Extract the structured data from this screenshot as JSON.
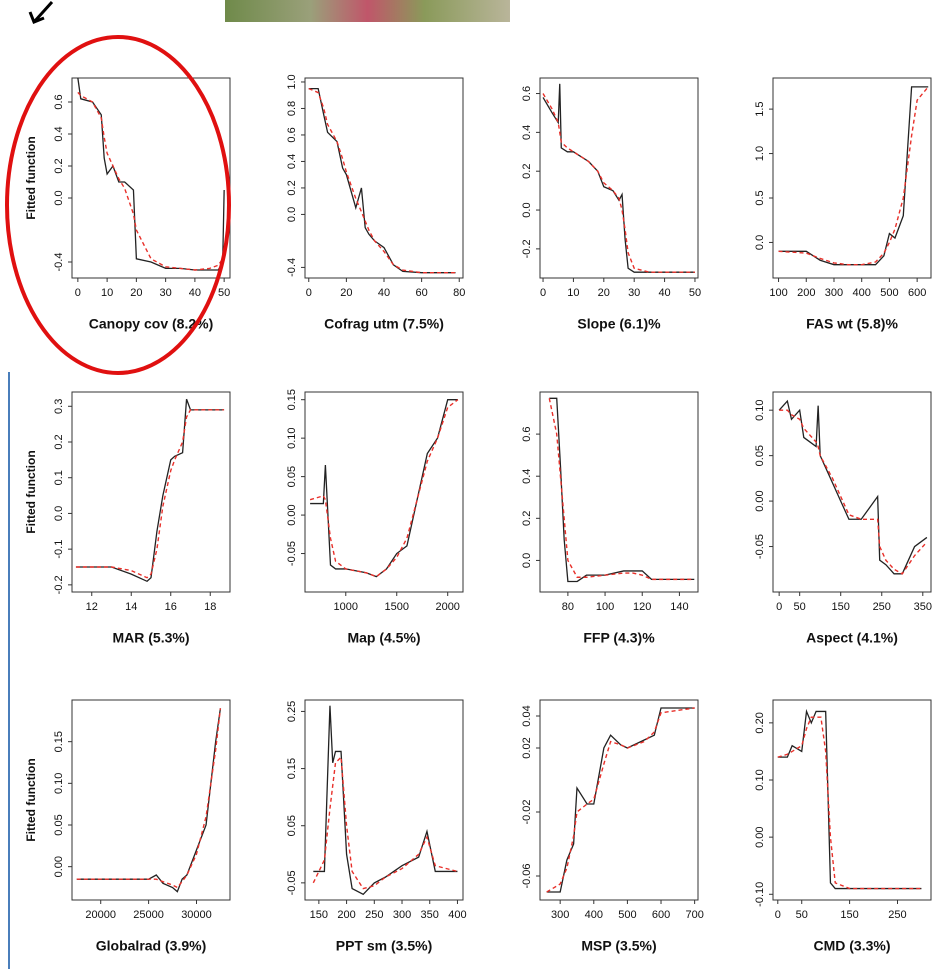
{
  "chart_data": [
    {
      "type": "line",
      "title": "Canopy cov (8.2%)",
      "ylabel": "Fitted function",
      "x": [
        0,
        1,
        5,
        8,
        9,
        10,
        12,
        14,
        16,
        19,
        20,
        25,
        30,
        35,
        40,
        45,
        48,
        49.5,
        50
      ],
      "series": [
        {
          "color": "#222222",
          "line_style": "solid",
          "values": [
            0.75,
            0.62,
            0.6,
            0.52,
            0.25,
            0.15,
            0.2,
            0.1,
            0.1,
            0.05,
            -0.38,
            -0.4,
            -0.44,
            -0.44,
            -0.45,
            -0.45,
            -0.45,
            -0.4,
            0.05
          ]
        },
        {
          "color": "#e8302a",
          "line_style": "dashed",
          "values": [
            0.66,
            0.64,
            0.6,
            0.5,
            0.38,
            0.28,
            0.2,
            0.12,
            0.06,
            -0.1,
            -0.2,
            -0.38,
            -0.43,
            -0.44,
            -0.45,
            -0.44,
            -0.42,
            -0.38,
            -0.35
          ]
        }
      ],
      "xlim": [
        -2,
        52
      ],
      "xticks": [
        0,
        10,
        20,
        30,
        40,
        50
      ],
      "ylim": [
        -0.5,
        0.75
      ],
      "yticks": [
        -0.4,
        {
          "value": 0,
          "label": "0.0"
        },
        0.2,
        0.4,
        0.6
      ]
    },
    {
      "type": "line",
      "title": "Cofrag utm (7.5%)",
      "x": [
        0,
        5,
        8,
        10,
        15,
        18,
        20,
        25,
        28,
        30,
        32,
        35,
        40,
        45,
        50,
        60,
        78
      ],
      "series": [
        {
          "color": "#222222",
          "line_style": "solid",
          "values": [
            0.95,
            0.95,
            0.75,
            0.62,
            0.55,
            0.35,
            0.3,
            0.05,
            0.2,
            -0.1,
            -0.15,
            -0.2,
            -0.25,
            -0.38,
            -0.43,
            -0.44,
            -0.44
          ]
        },
        {
          "color": "#e8302a",
          "line_style": "dashed",
          "values": [
            0.95,
            0.92,
            0.8,
            0.68,
            0.55,
            0.42,
            0.32,
            0.12,
            0.02,
            -0.05,
            -0.12,
            -0.2,
            -0.28,
            -0.38,
            -0.42,
            -0.44,
            -0.44
          ]
        }
      ],
      "xlim": [
        -2,
        82
      ],
      "xticks": [
        0,
        20,
        40,
        60,
        80
      ],
      "ylim": [
        -0.48,
        1.03
      ],
      "yticks": [
        -0.4,
        {
          "value": 0,
          "label": "0.0"
        },
        0.2,
        0.4,
        0.6,
        0.8,
        {
          "value": 1,
          "label": "1.0"
        }
      ]
    },
    {
      "type": "line",
      "title": "Slope (6.1)%",
      "x": [
        0,
        3,
        5,
        5.5,
        6,
        8,
        10,
        15,
        18,
        20,
        23,
        25,
        26,
        27,
        28,
        30,
        35,
        40,
        50
      ],
      "series": [
        {
          "color": "#222222",
          "line_style": "solid",
          "values": [
            0.58,
            0.5,
            0.45,
            0.65,
            0.32,
            0.3,
            0.3,
            0.25,
            0.2,
            0.12,
            0.1,
            0.05,
            0.08,
            -0.15,
            -0.3,
            -0.32,
            -0.32,
            -0.32,
            -0.32
          ]
        },
        {
          "color": "#e8302a",
          "line_style": "dashed",
          "values": [
            0.6,
            0.52,
            0.45,
            0.4,
            0.35,
            0.32,
            0.3,
            0.25,
            0.2,
            0.14,
            0.1,
            0.06,
            0.0,
            -0.1,
            -0.22,
            -0.3,
            -0.32,
            -0.32,
            -0.32
          ]
        }
      ],
      "xlim": [
        -1,
        51
      ],
      "xticks": [
        0,
        10,
        20,
        30,
        40,
        50
      ],
      "ylim": [
        -0.35,
        0.68
      ],
      "yticks": [
        -0.2,
        {
          "value": 0,
          "label": "0.0"
        },
        0.2,
        0.4,
        0.6
      ]
    },
    {
      "type": "line",
      "title": "FAS wt (5.8)%",
      "x": [
        100,
        200,
        250,
        300,
        350,
        400,
        450,
        480,
        500,
        520,
        550,
        580,
        600,
        640
      ],
      "series": [
        {
          "color": "#222222",
          "line_style": "solid",
          "values": [
            -0.1,
            -0.1,
            -0.2,
            -0.25,
            -0.25,
            -0.25,
            -0.25,
            -0.15,
            0.1,
            0.05,
            0.3,
            1.75,
            1.75,
            1.75
          ]
        },
        {
          "color": "#e8302a",
          "line_style": "dashed",
          "values": [
            -0.1,
            -0.12,
            -0.18,
            -0.23,
            -0.25,
            -0.25,
            -0.22,
            -0.12,
            0,
            0.15,
            0.5,
            1.2,
            1.6,
            1.75
          ]
        }
      ],
      "xlim": [
        80,
        650
      ],
      "xticks": [
        100,
        200,
        300,
        400,
        500,
        600
      ],
      "ylim": [
        -0.4,
        1.85
      ],
      "yticks": [
        {
          "value": 0,
          "label": "0.0"
        },
        0.5,
        {
          "value": 1,
          "label": "1.0"
        },
        1.5
      ]
    },
    {
      "type": "line",
      "title": "MAR (5.3%)",
      "ylabel": "Fitted function",
      "x": [
        11.2,
        13,
        14,
        14.8,
        15,
        15.3,
        15.6,
        16,
        16.2,
        16.6,
        16.8,
        17,
        18,
        18.7
      ],
      "series": [
        {
          "color": "#222222",
          "line_style": "solid",
          "values": [
            -0.15,
            -0.15,
            -0.17,
            -0.19,
            -0.18,
            -0.05,
            0.05,
            0.15,
            0.16,
            0.17,
            0.32,
            0.29,
            0.29,
            0.29
          ]
        },
        {
          "color": "#e8302a",
          "line_style": "dashed",
          "values": [
            -0.15,
            -0.15,
            -0.16,
            -0.18,
            -0.17,
            -0.1,
            0.02,
            0.12,
            0.15,
            0.2,
            0.27,
            0.29,
            0.29,
            0.29
          ]
        }
      ],
      "xlim": [
        11,
        19
      ],
      "xticks": [
        12,
        14,
        16,
        18
      ],
      "ylim": [
        -0.22,
        0.34
      ],
      "yticks": [
        -0.2,
        -0.1,
        {
          "value": 0,
          "label": "0.0"
        },
        0.1,
        0.2,
        0.3
      ]
    },
    {
      "type": "line",
      "title": "Map (4.5%)",
      "x": [
        650,
        780,
        800,
        850,
        900,
        1000,
        1200,
        1300,
        1400,
        1500,
        1600,
        1700,
        1800,
        1900,
        2000,
        2100
      ],
      "series": [
        {
          "color": "#222222",
          "line_style": "solid",
          "values": [
            0.015,
            0.015,
            0.065,
            -0.065,
            -0.07,
            -0.07,
            -0.075,
            -0.08,
            -0.07,
            -0.05,
            -0.04,
            0.02,
            0.08,
            0.1,
            0.15,
            0.15
          ]
        },
        {
          "color": "#e8302a",
          "line_style": "dashed",
          "values": [
            0.02,
            0.025,
            0.02,
            -0.03,
            -0.06,
            -0.07,
            -0.075,
            -0.08,
            -0.07,
            -0.055,
            -0.03,
            0.02,
            0.07,
            0.1,
            0.14,
            0.15
          ]
        }
      ],
      "xlim": [
        600,
        2150
      ],
      "xticks": [
        1000,
        1500,
        2000
      ],
      "ylim": [
        -0.1,
        0.16
      ],
      "yticks": [
        -0.05,
        {
          "value": 0,
          "label": "0.00"
        },
        0.05,
        {
          "value": 0.1,
          "label": "0.10"
        },
        0.15
      ]
    },
    {
      "type": "line",
      "title": "FFP (4.3)%",
      "x": [
        70,
        74,
        76,
        78,
        80,
        85,
        90,
        100,
        110,
        115,
        120,
        125,
        148
      ],
      "series": [
        {
          "color": "#222222",
          "line_style": "solid",
          "values": [
            0.77,
            0.77,
            0.45,
            0.1,
            -0.1,
            -0.1,
            -0.07,
            -0.07,
            -0.05,
            -0.05,
            -0.05,
            -0.09,
            -0.09
          ]
        },
        {
          "color": "#e8302a",
          "line_style": "dashed",
          "values": [
            0.77,
            0.6,
            0.4,
            0.2,
            0.0,
            -0.08,
            -0.08,
            -0.07,
            -0.06,
            -0.06,
            -0.07,
            -0.09,
            -0.09
          ]
        }
      ],
      "xlim": [
        65,
        150
      ],
      "xticks": [
        80,
        100,
        120,
        140
      ],
      "ylim": [
        -0.15,
        0.8
      ],
      "yticks": [
        {
          "value": 0,
          "label": "0.0"
        },
        0.2,
        0.4,
        0.6
      ]
    },
    {
      "type": "line",
      "title": "Aspect (4.1%)",
      "x": [
        0,
        20,
        30,
        50,
        60,
        90,
        95,
        100,
        130,
        150,
        170,
        200,
        240,
        245,
        260,
        280,
        300,
        330,
        360
      ],
      "series": [
        {
          "color": "#222222",
          "line_style": "solid",
          "values": [
            0.1,
            0.11,
            0.09,
            0.1,
            0.07,
            0.06,
            0.105,
            0.05,
            0.02,
            0.0,
            -0.02,
            -0.02,
            0.005,
            -0.065,
            -0.07,
            -0.08,
            -0.08,
            -0.05,
            -0.04
          ]
        },
        {
          "color": "#e8302a",
          "line_style": "dashed",
          "values": [
            0.1,
            0.1,
            0.095,
            0.09,
            0.08,
            0.065,
            0.06,
            0.05,
            0.025,
            0.005,
            -0.015,
            -0.02,
            -0.02,
            -0.05,
            -0.065,
            -0.075,
            -0.08,
            -0.06,
            -0.045
          ]
        }
      ],
      "xlim": [
        -15,
        370
      ],
      "xticks": [
        0,
        50,
        150,
        250,
        350
      ],
      "ylim": [
        -0.1,
        0.12
      ],
      "yticks": [
        -0.05,
        {
          "value": 0,
          "label": "0.00"
        },
        0.05,
        {
          "value": 0.1,
          "label": "0.10"
        }
      ]
    },
    {
      "type": "line",
      "title": "Globalrad (3.9%)",
      "ylabel": "Fitted function",
      "x": [
        17500,
        20000,
        25000,
        25800,
        26500,
        27500,
        28000,
        28500,
        29000,
        30000,
        31000,
        32000,
        32500
      ],
      "series": [
        {
          "color": "#222222",
          "line_style": "solid",
          "values": [
            -0.015,
            -0.015,
            -0.015,
            -0.01,
            -0.02,
            -0.025,
            -0.03,
            -0.015,
            -0.01,
            0.02,
            0.05,
            0.15,
            0.19
          ]
        },
        {
          "color": "#e8302a",
          "line_style": "dashed",
          "values": [
            -0.015,
            -0.015,
            -0.015,
            -0.015,
            -0.018,
            -0.022,
            -0.025,
            -0.018,
            -0.01,
            0.015,
            0.06,
            0.14,
            0.19
          ]
        }
      ],
      "xlim": [
        17000,
        33500
      ],
      "xticks": [
        20000,
        25000,
        30000
      ],
      "ylim": [
        -0.04,
        0.2
      ],
      "yticks": [
        {
          "value": 0,
          "label": "0.00"
        },
        0.05,
        {
          "value": 0.1,
          "label": "0.10"
        },
        0.15
      ]
    },
    {
      "type": "line",
      "title": "PPT sm (3.5%)",
      "x": [
        140,
        160,
        170,
        175,
        180,
        190,
        200,
        210,
        230,
        250,
        270,
        300,
        330,
        345,
        360,
        400
      ],
      "series": [
        {
          "color": "#222222",
          "line_style": "solid",
          "values": [
            -0.03,
            -0.03,
            0.26,
            0.16,
            0.18,
            0.18,
            0.0,
            -0.06,
            -0.07,
            -0.05,
            -0.04,
            -0.02,
            -0.005,
            0.04,
            -0.03,
            -0.03
          ]
        },
        {
          "color": "#e8302a",
          "line_style": "dashed",
          "values": [
            -0.05,
            -0.01,
            0.08,
            0.12,
            0.16,
            0.17,
            0.05,
            -0.03,
            -0.06,
            -0.055,
            -0.04,
            -0.025,
            0.0,
            0.03,
            -0.02,
            -0.03
          ]
        }
      ],
      "xlim": [
        125,
        410
      ],
      "xticks": [
        150,
        200,
        250,
        300,
        350,
        400
      ],
      "ylim": [
        -0.08,
        0.27
      ],
      "yticks": [
        -0.05,
        0.05,
        0.15,
        0.25
      ]
    },
    {
      "type": "line",
      "title": "MSP (3.5%)",
      "x": [
        260,
        300,
        320,
        340,
        350,
        380,
        400,
        430,
        450,
        480,
        500,
        550,
        580,
        600,
        700
      ],
      "series": [
        {
          "color": "#222222",
          "line_style": "solid",
          "values": [
            -0.07,
            -0.07,
            -0.05,
            -0.04,
            -0.005,
            -0.015,
            -0.015,
            0.02,
            0.028,
            0.022,
            0.02,
            0.025,
            0.028,
            0.045,
            0.045
          ]
        },
        {
          "color": "#e8302a",
          "line_style": "dashed",
          "values": [
            -0.07,
            -0.065,
            -0.055,
            -0.035,
            -0.02,
            -0.015,
            -0.012,
            0.01,
            0.024,
            0.022,
            0.02,
            0.024,
            0.03,
            0.042,
            0.045
          ]
        }
      ],
      "xlim": [
        240,
        710
      ],
      "xticks": [
        300,
        400,
        500,
        600,
        700
      ],
      "ylim": [
        -0.075,
        0.05
      ],
      "yticks": [
        -0.06,
        -0.02,
        0.02,
        0.04
      ]
    },
    {
      "type": "line",
      "title": "CMD (3.3%)",
      "x": [
        0,
        20,
        30,
        50,
        60,
        70,
        80,
        90,
        100,
        110,
        120,
        150,
        300
      ],
      "series": [
        {
          "color": "#222222",
          "line_style": "solid",
          "values": [
            0.14,
            0.14,
            0.16,
            0.15,
            0.22,
            0.2,
            0.22,
            0.22,
            0.22,
            -0.08,
            -0.09,
            -0.09,
            -0.09
          ]
        },
        {
          "color": "#e8302a",
          "line_style": "dashed",
          "values": [
            0.14,
            0.145,
            0.15,
            0.16,
            0.19,
            0.21,
            0.21,
            0.21,
            0.15,
            0.0,
            -0.08,
            -0.09,
            -0.09
          ]
        }
      ],
      "xlim": [
        -10,
        320
      ],
      "xticks": [
        0,
        50,
        150,
        250
      ],
      "ylim": [
        -0.11,
        0.24
      ],
      "yticks": [
        {
          "value": -0.1,
          "label": "-0.10"
        },
        {
          "value": 0,
          "label": "0.00"
        },
        {
          "value": 0.1,
          "label": "0.10"
        },
        {
          "value": 0.2,
          "label": "0.20"
        }
      ]
    }
  ]
}
